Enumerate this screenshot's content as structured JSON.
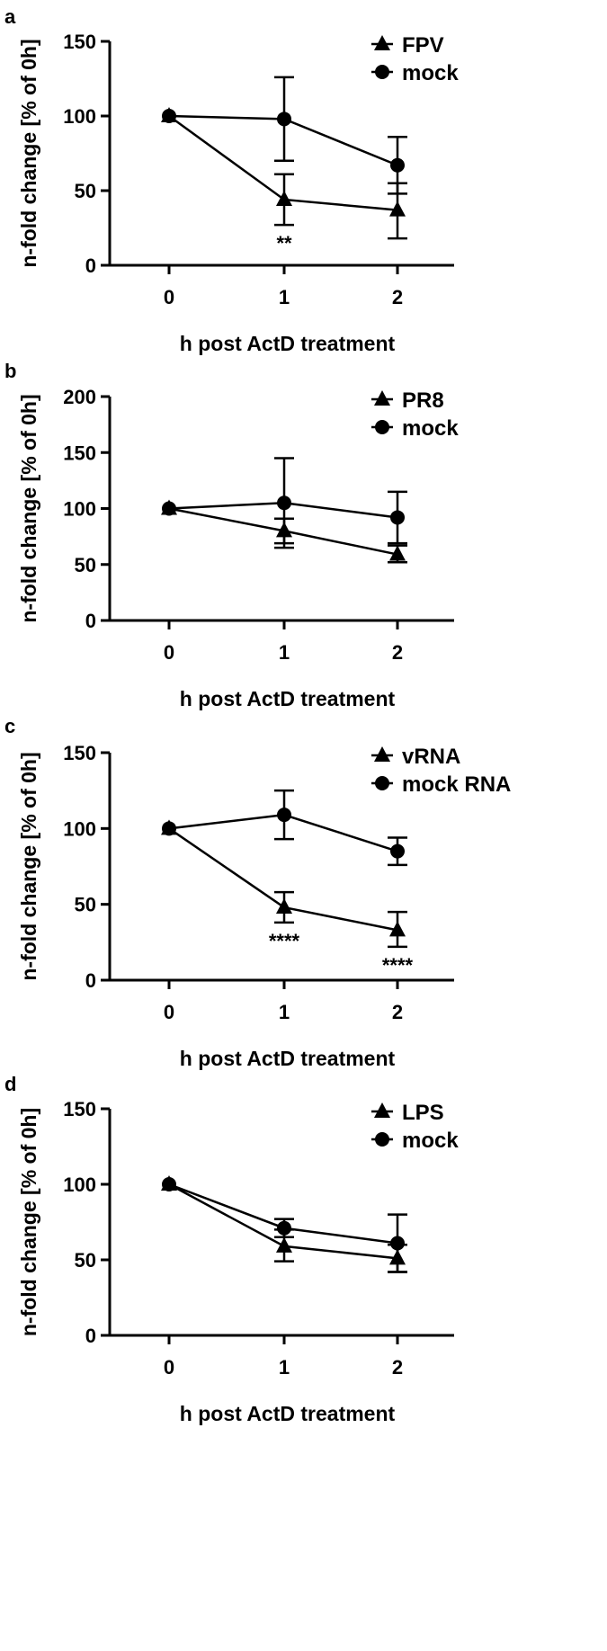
{
  "chart_data": [
    {
      "panel": "a",
      "type": "line",
      "xlabel": "h post ActD treatment",
      "ylabel": "n-fold change [% of 0h]",
      "x": [
        0,
        1,
        2
      ],
      "xticks": [
        "0",
        "1",
        "2"
      ],
      "ylim": [
        0,
        150
      ],
      "yticks": [
        0,
        50,
        100,
        150
      ],
      "series": [
        {
          "name": "FPV",
          "marker": "triangle",
          "values": [
            100,
            44,
            37
          ],
          "err_up": [
            0,
            17,
            18
          ],
          "err_down": [
            0,
            17,
            19
          ]
        },
        {
          "name": "mock",
          "marker": "circle",
          "values": [
            100,
            98,
            67
          ],
          "err_up": [
            0,
            28,
            19
          ],
          "err_down": [
            0,
            28,
            19
          ]
        }
      ],
      "annotations": [
        {
          "x": 1,
          "text": "**"
        }
      ]
    },
    {
      "panel": "b",
      "type": "line",
      "xlabel": "h post ActD treatment",
      "ylabel": "n-fold change [% of 0h]",
      "x": [
        0,
        1,
        2
      ],
      "xticks": [
        "0",
        "1",
        "2"
      ],
      "ylim": [
        0,
        200
      ],
      "yticks": [
        0,
        50,
        100,
        150,
        200
      ],
      "series": [
        {
          "name": "PR8",
          "marker": "triangle",
          "values": [
            100,
            80,
            59
          ],
          "err_up": [
            0,
            11,
            8
          ],
          "err_down": [
            0,
            11,
            7
          ]
        },
        {
          "name": "mock",
          "marker": "circle",
          "values": [
            100,
            105,
            92
          ],
          "err_up": [
            0,
            40,
            23
          ],
          "err_down": [
            0,
            40,
            23
          ]
        }
      ],
      "annotations": []
    },
    {
      "panel": "c",
      "type": "line",
      "xlabel": "h post ActD treatment",
      "ylabel": "n-fold change [% of 0h]",
      "x": [
        0,
        1,
        2
      ],
      "xticks": [
        "0",
        "1",
        "2"
      ],
      "ylim": [
        0,
        150
      ],
      "yticks": [
        0,
        50,
        100,
        150
      ],
      "series": [
        {
          "name": "vRNA",
          "marker": "triangle",
          "values": [
            100,
            48,
            33
          ],
          "err_up": [
            0,
            10,
            12
          ],
          "err_down": [
            0,
            10,
            11
          ]
        },
        {
          "name": "mock RNA",
          "marker": "circle",
          "values": [
            100,
            109,
            85
          ],
          "err_up": [
            0,
            16,
            9
          ],
          "err_down": [
            0,
            16,
            9
          ]
        }
      ],
      "annotations": [
        {
          "x": 1,
          "text": "****"
        },
        {
          "x": 2,
          "text": "****"
        }
      ]
    },
    {
      "panel": "d",
      "type": "line",
      "xlabel": "h post ActD treatment",
      "ylabel": "n-fold change [% of 0h]",
      "x": [
        0,
        1,
        2
      ],
      "xticks": [
        "0",
        "1",
        "2"
      ],
      "ylim": [
        0,
        150
      ],
      "yticks": [
        0,
        50,
        100,
        150
      ],
      "series": [
        {
          "name": "LPS",
          "marker": "triangle",
          "values": [
            100,
            59,
            51
          ],
          "err_up": [
            0,
            11,
            9
          ],
          "err_down": [
            0,
            10,
            9
          ]
        },
        {
          "name": "mock",
          "marker": "circle",
          "values": [
            100,
            71,
            61
          ],
          "err_up": [
            0,
            6,
            19
          ],
          "err_down": [
            0,
            6,
            19
          ]
        }
      ],
      "annotations": []
    }
  ]
}
